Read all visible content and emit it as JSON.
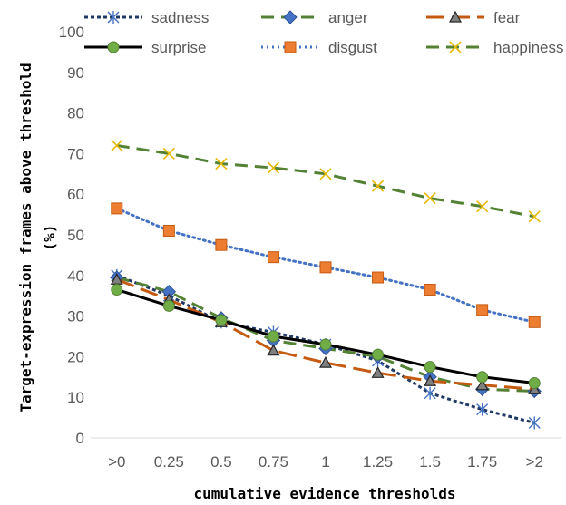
{
  "chart_data": {
    "type": "line",
    "title": "",
    "xlabel": "cumulative evidence thresholds",
    "ylabel": "Target-expression frames above threshold (%)",
    "ylim": [
      0,
      100
    ],
    "yticks": [
      0,
      10,
      20,
      30,
      40,
      50,
      60,
      70,
      80,
      90,
      100
    ],
    "grid": false,
    "legend_position": "top",
    "categories": [
      ">0",
      "0.25",
      "0.5",
      "0.75",
      "1",
      "1.25",
      "1.5",
      "1.75",
      ">2"
    ],
    "series": [
      {
        "name": "sadness",
        "color": "#1f3864",
        "marker": "star-cross",
        "dash": "4,3",
        "values": [
          40,
          35,
          28.5,
          26,
          23,
          19,
          11,
          7,
          3.7
        ]
      },
      {
        "name": "anger",
        "color": "#548235",
        "marker_color": "#4472c4",
        "marker": "diamond",
        "dash": "14,8",
        "values": [
          39.5,
          36,
          29.5,
          24,
          22,
          20,
          15,
          12,
          11.5
        ]
      },
      {
        "name": "fear",
        "color": "#c55a11",
        "marker_color": "#808080",
        "marker": "triangle",
        "dash": "20,8",
        "values": [
          39,
          34,
          28.5,
          21.5,
          18.5,
          16,
          14,
          13,
          12
        ]
      },
      {
        "name": "surprise",
        "color": "#000000",
        "marker_color": "#70ad47",
        "marker": "circle",
        "dash": "",
        "values": [
          36.5,
          32.5,
          29,
          25,
          23,
          20.5,
          17.5,
          15,
          13.5
        ]
      },
      {
        "name": "disgust",
        "color": "#4472c4",
        "marker_color": "#ed7d31",
        "marker": "square",
        "dash": "2,4",
        "values": [
          56.5,
          51,
          47.5,
          44.5,
          42,
          39.5,
          36.5,
          31.5,
          28.5
        ]
      },
      {
        "name": "happiness",
        "color": "#548235",
        "marker_color": "#ffd966",
        "marker": "x",
        "dash": "14,8",
        "values": [
          72,
          70,
          67.5,
          66.5,
          65,
          62,
          59,
          57,
          54.5
        ]
      }
    ]
  }
}
